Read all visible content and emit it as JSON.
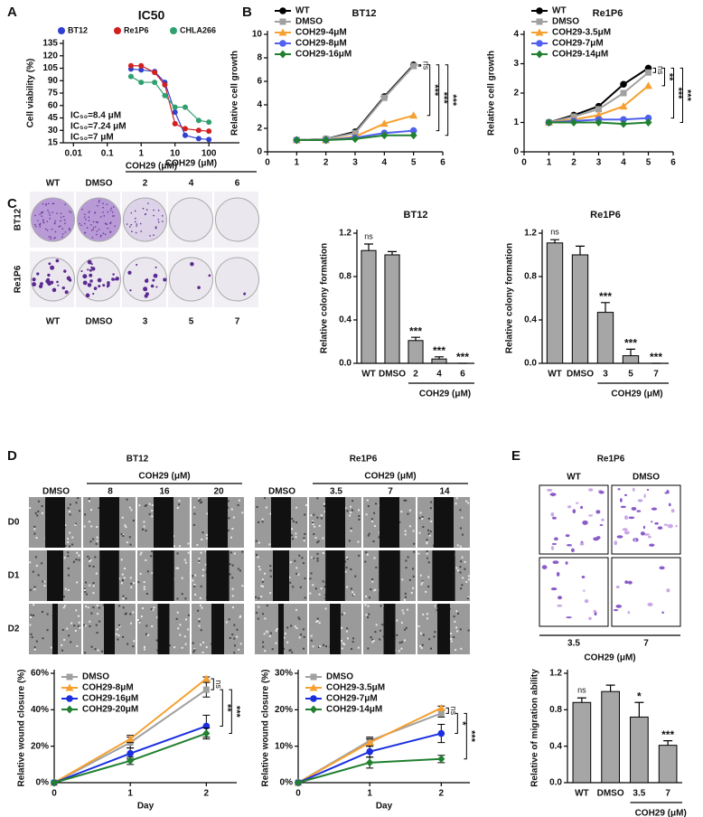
{
  "figure": {
    "panel_labels": [
      "A",
      "B",
      "C",
      "D",
      "E"
    ]
  },
  "images": {
    "C": {
      "group_label": "COH29 (μM)",
      "top_labels": [
        "WT",
        "DMSO",
        "2",
        "4",
        "6"
      ],
      "bottom_labels": [
        "WT",
        "DMSO",
        "3",
        "5",
        "7"
      ],
      "row_labels": [
        "BT12",
        "Re1P6"
      ]
    },
    "D": [
      {
        "title": "BT12",
        "group_label": "COH29 (μM)",
        "col_labels": [
          "DMSO",
          "8",
          "16",
          "20"
        ],
        "row_labels": [
          "D0",
          "D1",
          "D2"
        ]
      },
      {
        "title": "Re1P6",
        "group_label": "COH29 (μM)",
        "col_labels": [
          "DMSO",
          "3.5",
          "7",
          "14"
        ]
      }
    ],
    "E": {
      "title": "Re1P6",
      "top_labels": [
        "WT",
        "DMSO"
      ],
      "bottom_labels": [
        "3.5",
        "7"
      ],
      "group_label": "COH29 (μM)"
    }
  },
  "chart_data": [
    {
      "type": "scatter",
      "title": "IC50",
      "xlabel": "COH29 (μM)",
      "ylabel": "Cell viability (%)",
      "log_x": true,
      "xlim": [
        0.005,
        800
      ],
      "ylim": [
        15,
        135
      ],
      "xticks": [
        0.01,
        0.1,
        1,
        10,
        100
      ],
      "yticks": [
        15,
        30,
        45,
        60,
        75,
        90,
        105,
        120,
        135
      ],
      "x": [
        0.5,
        1,
        2.5,
        5,
        10,
        20,
        50,
        100
      ],
      "series": [
        {
          "name": "BT12",
          "color": "#3040d0",
          "values": [
            104,
            103,
            101,
            88,
            52,
            24,
            20,
            19
          ]
        },
        {
          "name": "Re1P6",
          "color": "#d02020",
          "values": [
            108,
            108,
            100,
            85,
            38,
            32,
            30,
            29
          ]
        },
        {
          "name": "CHLA266",
          "color": "#30a070",
          "values": [
            95,
            88,
            88,
            72,
            58,
            58,
            42,
            40
          ]
        }
      ],
      "annotations": [
        "IC₅₀=8.4 μM",
        "IC₅₀=7.24 μM",
        "IC₅₀=7 μM"
      ]
    },
    {
      "type": "line",
      "title": "BT12",
      "title_color": "#c00000",
      "ylabel": "Relative cell growth",
      "xlim": [
        0,
        6
      ],
      "ylim": [
        0,
        10
      ],
      "xticks": [
        0,
        1,
        2,
        3,
        4,
        5,
        6
      ],
      "yticks": [
        0,
        2,
        4,
        6,
        8,
        10
      ],
      "x": [
        1,
        2,
        3,
        4,
        5
      ],
      "series": [
        {
          "name": "WT",
          "color": "#000000",
          "marker": "circle",
          "values": [
            1,
            1.1,
            1.7,
            4.7,
            7.4
          ]
        },
        {
          "name": "DMSO",
          "color": "#a0a0a0",
          "marker": "square",
          "values": [
            1,
            1.1,
            1.6,
            4.6,
            7.3
          ]
        },
        {
          "name": "COH29-4μM",
          "color": "#f5a030",
          "marker": "triangle",
          "values": [
            1,
            1,
            1.3,
            2.4,
            3.1
          ]
        },
        {
          "name": "COH29-8μM",
          "color": "#5060f0",
          "marker": "circle",
          "values": [
            1,
            1,
            1.2,
            1.6,
            1.8
          ]
        },
        {
          "name": "COH29-16μM",
          "color": "#208030",
          "marker": "diamond",
          "values": [
            1,
            1,
            1.1,
            1.4,
            1.4
          ]
        }
      ],
      "annotations": [
        "ns",
        "***",
        "***",
        "***"
      ]
    },
    {
      "type": "line",
      "title": "Re1P6",
      "title_color": "#c00000",
      "ylabel": "Relative cell growth",
      "xlim": [
        0,
        6
      ],
      "ylim": [
        0,
        4
      ],
      "xticks": [
        0,
        1,
        2,
        3,
        4,
        5,
        6
      ],
      "yticks": [
        0,
        1,
        2,
        3,
        4
      ],
      "x": [
        1,
        2,
        3,
        4,
        5
      ],
      "series": [
        {
          "name": "WT",
          "color": "#000000",
          "marker": "circle",
          "values": [
            1,
            1.25,
            1.55,
            2.3,
            2.85
          ]
        },
        {
          "name": "DMSO",
          "color": "#a0a0a0",
          "marker": "square",
          "values": [
            1,
            1.2,
            1.45,
            2.0,
            2.7
          ]
        },
        {
          "name": "COH29-3.5μM",
          "color": "#f5a030",
          "marker": "triangle",
          "values": [
            1,
            1.1,
            1.25,
            1.55,
            2.25
          ]
        },
        {
          "name": "COH29-7μM",
          "color": "#5060f0",
          "marker": "circle",
          "values": [
            1,
            1.05,
            1.1,
            1.1,
            1.15
          ]
        },
        {
          "name": "COH29-14μM",
          "color": "#208030",
          "marker": "diamond",
          "values": [
            1,
            1,
            1,
            0.95,
            1
          ]
        }
      ],
      "annotations": [
        "ns",
        "**",
        "***",
        "***"
      ]
    },
    {
      "type": "bar",
      "title": "BT12",
      "title_color": "#c00000",
      "ylabel": "Relative colony formation",
      "color": "#a6a6a6",
      "ylim": [
        0,
        1.2
      ],
      "yticks": [
        {
          "value": 0,
          "label": "0.0"
        },
        0.4,
        0.8,
        1.2
      ],
      "categories": [
        "WT",
        "DMSO",
        "2",
        "4",
        "6"
      ],
      "values": [
        1.04,
        1.0,
        0.21,
        0.04,
        0
      ],
      "errors": [
        0.06,
        0.03,
        0.03,
        0.02,
        0
      ],
      "annotations": [
        "ns",
        null,
        "***",
        "***",
        "***"
      ],
      "group_label": "COH29 (μM)"
    },
    {
      "type": "bar",
      "title": "Re1P6",
      "title_color": "#c00000",
      "ylabel": "Relative colony formation",
      "color": "#a6a6a6",
      "ylim": [
        0,
        1.2
      ],
      "yticks": [
        {
          "value": 0,
          "label": "0.0"
        },
        0.4,
        0.8,
        1.2
      ],
      "categories": [
        "WT",
        "DMSO",
        "3",
        "5",
        "7"
      ],
      "values": [
        1.11,
        1.0,
        0.47,
        0.07,
        0
      ],
      "errors": [
        0.03,
        0.08,
        0.09,
        0.06,
        0
      ],
      "annotations": [
        "ns",
        null,
        "***",
        "***",
        "***"
      ],
      "group_label": "COH29 (μM)"
    },
    {
      "type": "line",
      "xlabel": "Day",
      "ylabel": "Relative wound closure (%)",
      "xlim": [
        0,
        2.4
      ],
      "ylim": [
        0,
        60
      ],
      "xticks": [
        0,
        1,
        2
      ],
      "yticks": [
        {
          "value": 0,
          "label": "0%"
        },
        {
          "value": 20,
          "label": "20%"
        },
        {
          "value": 40,
          "label": "40%"
        },
        {
          "value": 60,
          "label": "60%"
        }
      ],
      "x": [
        0,
        1,
        2
      ],
      "series": [
        {
          "name": "DMSO",
          "color": "#a0a0a0",
          "marker": "square",
          "values": [
            0,
            22,
            51
          ],
          "errors": [
            0,
            3,
            4
          ]
        },
        {
          "name": "COH29-8μM",
          "color": "#f5a030",
          "marker": "triangle",
          "values": [
            0,
            24,
            57
          ],
          "errors": [
            0,
            2,
            1
          ]
        },
        {
          "name": "COH29-16μM",
          "color": "#1a2ee0",
          "marker": "circle",
          "values": [
            0,
            16,
            31
          ],
          "errors": [
            0,
            3,
            6
          ]
        },
        {
          "name": "COH29-20μM",
          "color": "#208030",
          "marker": "diamond",
          "values": [
            0,
            12,
            27
          ],
          "errors": [
            0,
            2,
            3
          ]
        }
      ],
      "annotations": [
        "ns",
        "**",
        "***"
      ]
    },
    {
      "type": "line",
      "xlabel": "Day",
      "ylabel": "Relative wound closure (%)",
      "xlim": [
        0,
        2.4
      ],
      "ylim": [
        0,
        30
      ],
      "xticks": [
        0,
        1,
        2
      ],
      "yticks": [
        {
          "value": 0,
          "label": "0%"
        },
        {
          "value": 10,
          "label": "10%"
        },
        {
          "value": 20,
          "label": "20%"
        },
        {
          "value": 30,
          "label": "30%"
        }
      ],
      "x": [
        0,
        1,
        2
      ],
      "series": [
        {
          "name": "DMSO",
          "color": "#a0a0a0",
          "marker": "square",
          "values": [
            0,
            11.5,
            19
          ],
          "errors": [
            0,
            1,
            1
          ]
        },
        {
          "name": "COH29-3.5μM",
          "color": "#f5a030",
          "marker": "triangle",
          "values": [
            0,
            11,
            20.5
          ],
          "errors": [
            0,
            1,
            0.5
          ]
        },
        {
          "name": "COH29-7μM",
          "color": "#1a2ee0",
          "marker": "circle",
          "values": [
            0,
            8.5,
            13.5
          ],
          "errors": [
            0,
            1.5,
            2.5
          ]
        },
        {
          "name": "COH29-14μM",
          "color": "#208030",
          "marker": "diamond",
          "values": [
            0,
            5.5,
            6.5
          ],
          "errors": [
            0,
            1.5,
            1
          ]
        }
      ],
      "annotations": [
        "ns",
        "*",
        "***"
      ]
    },
    {
      "type": "bar",
      "ylabel": "Relative of migration ability",
      "color": "#a6a6a6",
      "ylim": [
        0,
        1.2
      ],
      "yticks": [
        {
          "value": 0,
          "label": "0.0"
        },
        0.4,
        0.8,
        1.2
      ],
      "categories": [
        "WT",
        "DMSO",
        "3.5",
        "7"
      ],
      "values": [
        0.88,
        1.0,
        0.72,
        0.41
      ],
      "errors": [
        0.05,
        0.07,
        0.16,
        0.05
      ],
      "annotations": [
        "ns",
        null,
        "*",
        "***"
      ],
      "group_label": "COH29 (μM)"
    }
  ]
}
